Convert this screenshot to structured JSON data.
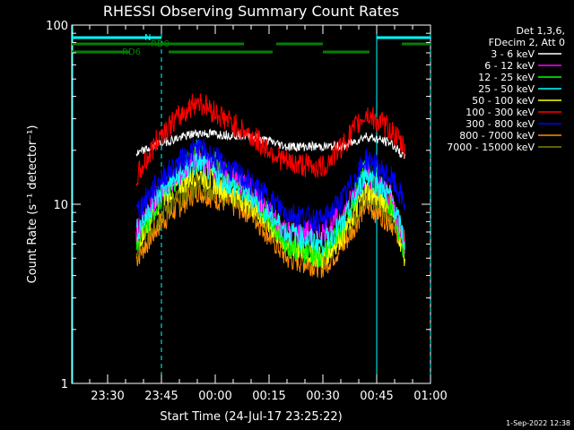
{
  "chart_data": {
    "type": "line",
    "title": "RHESSI Observing Summary Count Rates",
    "xlabel": "Start Time (24-Jul-17 23:25:22)",
    "ylabel": "Count Rate (s⁻¹ detector⁻¹)",
    "yscale": "log",
    "ylim": [
      1,
      100
    ],
    "xlim_minutes": [
      -5,
      95
    ],
    "y_ticks": [
      {
        "value": 1,
        "label": "1"
      },
      {
        "value": 10,
        "label": "10"
      },
      {
        "value": 100,
        "label": "100"
      }
    ],
    "x_ticks": [
      {
        "minute": 5,
        "label": "23:30"
      },
      {
        "minute": 20,
        "label": "23:45"
      },
      {
        "minute": 35,
        "label": "00:00"
      },
      {
        "minute": 50,
        "label": "00:15"
      },
      {
        "minute": 65,
        "label": "00:30"
      },
      {
        "minute": 80,
        "label": "00:45"
      },
      {
        "minute": 95,
        "label": "01:00"
      }
    ],
    "legend": {
      "position": "right",
      "header": [
        "Det 1,3,6,",
        "FDecim 2, Att 0"
      ]
    },
    "series": [
      {
        "name": "3 - 6 keV",
        "color": "#ffffff",
        "values": [
          19,
          22,
          25,
          24,
          21,
          21,
          21,
          24,
          22,
          18
        ]
      },
      {
        "name": "6 - 12 keV",
        "color": "#ff00ff",
        "values": [
          7,
          12,
          18,
          12,
          7,
          7,
          9,
          15,
          11,
          6
        ]
      },
      {
        "name": "12 - 25 keV",
        "color": "#00ff00",
        "values": [
          6,
          11,
          20,
          12,
          6,
          5,
          8,
          16,
          10,
          5
        ]
      },
      {
        "name": "25 - 50 keV",
        "color": "#00ffff",
        "values": [
          7,
          12,
          17,
          11,
          7,
          6,
          8,
          15,
          11,
          6
        ]
      },
      {
        "name": "50 - 100 keV",
        "color": "#ffff00",
        "values": [
          6,
          11,
          15,
          10,
          6,
          5,
          7,
          12,
          10,
          5
        ]
      },
      {
        "name": "100 - 300 keV",
        "color": "#ff0000",
        "values": [
          14,
          25,
          38,
          24,
          17,
          16,
          22,
          32,
          26,
          20
        ]
      },
      {
        "name": "300 - 800 keV",
        "color": "#0000ff",
        "values": [
          9,
          14,
          21,
          13,
          9,
          8,
          11,
          18,
          14,
          10
        ]
      },
      {
        "name": "800 - 7000 keV",
        "color": "#ff8c00",
        "values": [
          5,
          8,
          12,
          9,
          5,
          4.5,
          6,
          10,
          8,
          6
        ]
      },
      {
        "name": "7000 - 15000 keV",
        "color": "#808000",
        "values": [
          5.5,
          9,
          13,
          10,
          6,
          5,
          7,
          11,
          9,
          6
        ]
      }
    ],
    "series_minutes": [
      13,
      20,
      30,
      45,
      55,
      65,
      71,
      77,
      84,
      88
    ],
    "annotations": [
      {
        "label": "N",
        "color": "#00ffff",
        "start_minute": -5,
        "end_minute": 95
      },
      {
        "label": "RD0",
        "color": "#008000"
      },
      {
        "label": "RD6",
        "color": "#008000"
      }
    ]
  },
  "footer": {
    "timestamp": "1-Sep-2022 12:38"
  }
}
